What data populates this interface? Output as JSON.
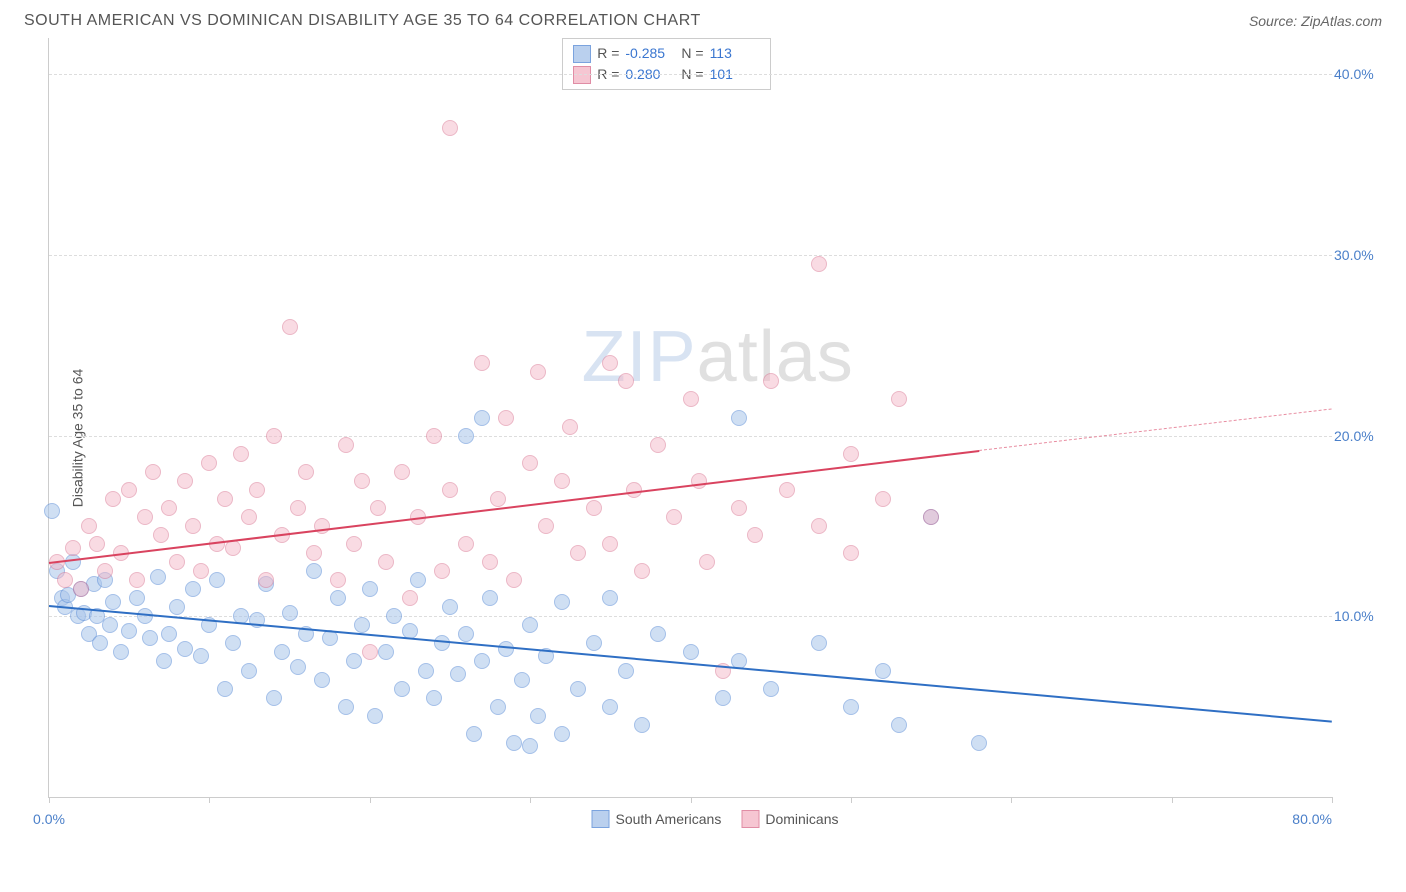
{
  "title": "SOUTH AMERICAN VS DOMINICAN DISABILITY AGE 35 TO 64 CORRELATION CHART",
  "source": "Source: ZipAtlas.com",
  "ylabel": "Disability Age 35 to 64",
  "watermark_zip": "ZIP",
  "watermark_atlas": "atlas",
  "chart": {
    "type": "scatter",
    "xlim": [
      0,
      80
    ],
    "ylim": [
      0,
      42
    ],
    "x_ticks": [
      0,
      10,
      20,
      30,
      40,
      50,
      60,
      70,
      80
    ],
    "x_tick_labels": {
      "0": "0.0%",
      "80": "80.0%"
    },
    "y_ticks": [
      10,
      20,
      30,
      40
    ],
    "y_tick_labels": [
      "10.0%",
      "20.0%",
      "30.0%",
      "40.0%"
    ],
    "grid_color": "#dddddd",
    "axis_color": "#cccccc",
    "background": "#ffffff",
    "tick_label_color": "#4a7fc9",
    "point_radius": 8,
    "series": [
      {
        "name": "South Americans",
        "fill": "#a9c5eb",
        "stroke": "#5b8dd6",
        "fill_opacity": 0.55,
        "R": "-0.285",
        "N": "113",
        "trend": {
          "x0": 0,
          "y0": 10.6,
          "x1": 80,
          "y1": 4.2,
          "color": "#2f6fc4",
          "width": 2
        },
        "points": [
          [
            0.2,
            15.8
          ],
          [
            0.5,
            12.5
          ],
          [
            0.8,
            11.0
          ],
          [
            1.0,
            10.5
          ],
          [
            1.2,
            11.2
          ],
          [
            1.5,
            13.0
          ],
          [
            1.8,
            10.0
          ],
          [
            2.0,
            11.5
          ],
          [
            2.2,
            10.2
          ],
          [
            2.5,
            9.0
          ],
          [
            2.8,
            11.8
          ],
          [
            3.0,
            10.0
          ],
          [
            3.2,
            8.5
          ],
          [
            3.5,
            12.0
          ],
          [
            3.8,
            9.5
          ],
          [
            4.0,
            10.8
          ],
          [
            4.5,
            8.0
          ],
          [
            5.0,
            9.2
          ],
          [
            5.5,
            11.0
          ],
          [
            6.0,
            10.0
          ],
          [
            6.3,
            8.8
          ],
          [
            6.8,
            12.2
          ],
          [
            7.2,
            7.5
          ],
          [
            7.5,
            9.0
          ],
          [
            8.0,
            10.5
          ],
          [
            8.5,
            8.2
          ],
          [
            9.0,
            11.5
          ],
          [
            9.5,
            7.8
          ],
          [
            10.0,
            9.5
          ],
          [
            10.5,
            12.0
          ],
          [
            11.0,
            6.0
          ],
          [
            11.5,
            8.5
          ],
          [
            12.0,
            10.0
          ],
          [
            12.5,
            7.0
          ],
          [
            13.0,
            9.8
          ],
          [
            13.5,
            11.8
          ],
          [
            14.0,
            5.5
          ],
          [
            14.5,
            8.0
          ],
          [
            15.0,
            10.2
          ],
          [
            15.5,
            7.2
          ],
          [
            16.0,
            9.0
          ],
          [
            16.5,
            12.5
          ],
          [
            17.0,
            6.5
          ],
          [
            17.5,
            8.8
          ],
          [
            18.0,
            11.0
          ],
          [
            18.5,
            5.0
          ],
          [
            19.0,
            7.5
          ],
          [
            19.5,
            9.5
          ],
          [
            20.0,
            11.5
          ],
          [
            20.3,
            4.5
          ],
          [
            21.0,
            8.0
          ],
          [
            21.5,
            10.0
          ],
          [
            22.0,
            6.0
          ],
          [
            22.5,
            9.2
          ],
          [
            23.0,
            12.0
          ],
          [
            23.5,
            7.0
          ],
          [
            24.0,
            5.5
          ],
          [
            24.5,
            8.5
          ],
          [
            25.0,
            10.5
          ],
          [
            25.5,
            6.8
          ],
          [
            26.0,
            20.0
          ],
          [
            26.0,
            9.0
          ],
          [
            26.5,
            3.5
          ],
          [
            27.0,
            7.5
          ],
          [
            27.0,
            21.0
          ],
          [
            27.5,
            11.0
          ],
          [
            28.0,
            5.0
          ],
          [
            28.5,
            8.2
          ],
          [
            29.0,
            3.0
          ],
          [
            29.5,
            6.5
          ],
          [
            30.0,
            2.8
          ],
          [
            30.0,
            9.5
          ],
          [
            30.5,
            4.5
          ],
          [
            31.0,
            7.8
          ],
          [
            32.0,
            3.5
          ],
          [
            32.0,
            10.8
          ],
          [
            33.0,
            6.0
          ],
          [
            34.0,
            8.5
          ],
          [
            35.0,
            11.0
          ],
          [
            35.0,
            5.0
          ],
          [
            36.0,
            7.0
          ],
          [
            37.0,
            4.0
          ],
          [
            38.0,
            9.0
          ],
          [
            40.0,
            8.0
          ],
          [
            42.0,
            5.5
          ],
          [
            43.0,
            7.5
          ],
          [
            43.0,
            21.0
          ],
          [
            45.0,
            6.0
          ],
          [
            48.0,
            8.5
          ],
          [
            50.0,
            5.0
          ],
          [
            52.0,
            7.0
          ],
          [
            53.0,
            4.0
          ],
          [
            55.0,
            15.5
          ],
          [
            58.0,
            3.0
          ]
        ]
      },
      {
        "name": "Dominicans",
        "fill": "#f4b8c8",
        "stroke": "#d9718f",
        "fill_opacity": 0.5,
        "R": "0.280",
        "N": "101",
        "trend_solid": {
          "x0": 0,
          "y0": 13.0,
          "x1": 58,
          "y1": 19.2,
          "color": "#d9435f",
          "width": 2
        },
        "trend_dash": {
          "x0": 58,
          "y0": 19.2,
          "x1": 80,
          "y1": 21.5,
          "color": "#e88da1"
        },
        "points": [
          [
            0.5,
            13.0
          ],
          [
            1.0,
            12.0
          ],
          [
            1.5,
            13.8
          ],
          [
            2.0,
            11.5
          ],
          [
            2.5,
            15.0
          ],
          [
            3.0,
            14.0
          ],
          [
            3.5,
            12.5
          ],
          [
            4.0,
            16.5
          ],
          [
            4.5,
            13.5
          ],
          [
            5.0,
            17.0
          ],
          [
            5.5,
            12.0
          ],
          [
            6.0,
            15.5
          ],
          [
            6.5,
            18.0
          ],
          [
            7.0,
            14.5
          ],
          [
            7.5,
            16.0
          ],
          [
            8.0,
            13.0
          ],
          [
            8.5,
            17.5
          ],
          [
            9.0,
            15.0
          ],
          [
            9.5,
            12.5
          ],
          [
            10.0,
            18.5
          ],
          [
            10.5,
            14.0
          ],
          [
            11.0,
            16.5
          ],
          [
            11.5,
            13.8
          ],
          [
            12.0,
            19.0
          ],
          [
            12.5,
            15.5
          ],
          [
            13.0,
            17.0
          ],
          [
            13.5,
            12.0
          ],
          [
            14.0,
            20.0
          ],
          [
            14.5,
            14.5
          ],
          [
            15.0,
            26.0
          ],
          [
            15.5,
            16.0
          ],
          [
            16.0,
            18.0
          ],
          [
            16.5,
            13.5
          ],
          [
            17.0,
            15.0
          ],
          [
            18.0,
            12.0
          ],
          [
            18.5,
            19.5
          ],
          [
            19.0,
            14.0
          ],
          [
            19.5,
            17.5
          ],
          [
            20.0,
            8.0
          ],
          [
            20.5,
            16.0
          ],
          [
            21.0,
            13.0
          ],
          [
            22.0,
            18.0
          ],
          [
            22.5,
            11.0
          ],
          [
            23.0,
            15.5
          ],
          [
            24.0,
            20.0
          ],
          [
            24.5,
            12.5
          ],
          [
            25.0,
            37.0
          ],
          [
            25.0,
            17.0
          ],
          [
            26.0,
            14.0
          ],
          [
            27.0,
            24.0
          ],
          [
            27.5,
            13.0
          ],
          [
            28.0,
            16.5
          ],
          [
            28.5,
            21.0
          ],
          [
            29.0,
            12.0
          ],
          [
            30.0,
            18.5
          ],
          [
            30.5,
            23.5
          ],
          [
            31.0,
            15.0
          ],
          [
            32.0,
            17.5
          ],
          [
            32.5,
            20.5
          ],
          [
            33.0,
            13.5
          ],
          [
            34.0,
            16.0
          ],
          [
            35.0,
            24.0
          ],
          [
            35.0,
            14.0
          ],
          [
            36.0,
            23.0
          ],
          [
            36.5,
            17.0
          ],
          [
            37.0,
            12.5
          ],
          [
            38.0,
            19.5
          ],
          [
            39.0,
            15.5
          ],
          [
            40.0,
            22.0
          ],
          [
            40.5,
            17.5
          ],
          [
            41.0,
            13.0
          ],
          [
            42.0,
            7.0
          ],
          [
            43.0,
            16.0
          ],
          [
            44.0,
            14.5
          ],
          [
            45.0,
            23.0
          ],
          [
            46.0,
            17.0
          ],
          [
            48.0,
            29.5
          ],
          [
            48.0,
            15.0
          ],
          [
            50.0,
            19.0
          ],
          [
            50.0,
            13.5
          ],
          [
            52.0,
            16.5
          ],
          [
            53.0,
            22.0
          ],
          [
            55.0,
            15.5
          ]
        ]
      }
    ]
  },
  "stat_legend_labels": {
    "R": "R =",
    "N": "N ="
  },
  "bottom_legend": [
    "South Americans",
    "Dominicans"
  ]
}
